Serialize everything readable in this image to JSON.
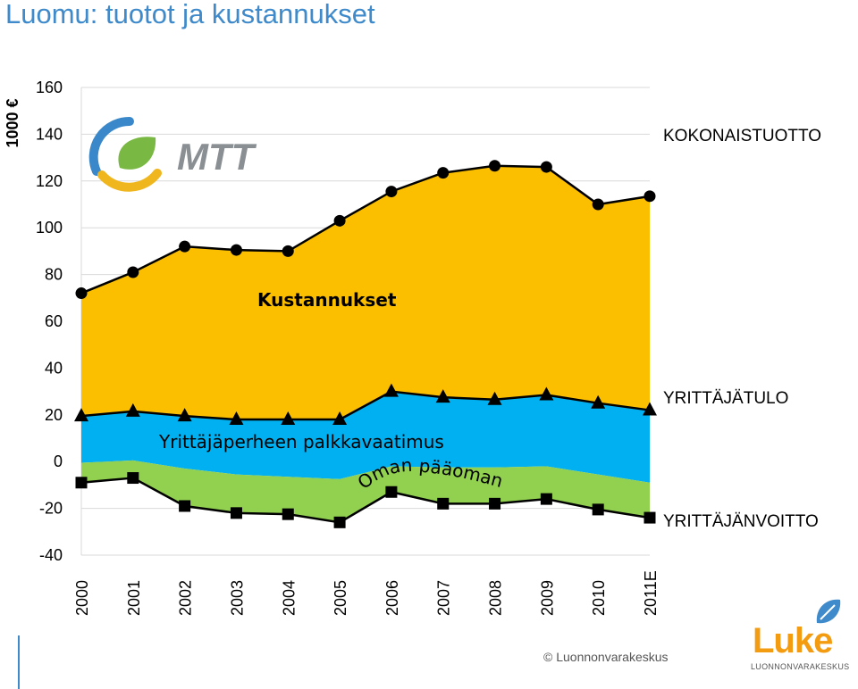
{
  "page": {
    "title": "Luomu: tuotot ja kustannukset",
    "copyright": "© Luonnonvarakeskus",
    "logos": {
      "mtt": {
        "text": "MTT",
        "colors": [
          "#3a88c9",
          "#79b943",
          "#f0b61d",
          "#8a8f93"
        ]
      },
      "luke": {
        "text": "Luke",
        "subtext": "LUONNONVARAKESKUS",
        "colors": [
          "#f39c12",
          "#3e8acb"
        ]
      }
    }
  },
  "colors": {
    "kustannukset": "#fbbf00",
    "palkkavaatimus": "#00b0f0",
    "korkovaatimus": "#92d050",
    "marker": "#000000",
    "gridline": "#d9d9d9",
    "title": "#3e8acb"
  },
  "chart_data": {
    "type": "area",
    "ylabel": "1000 €",
    "ylim": [
      -40,
      160
    ],
    "yticks": [
      -40,
      -20,
      0,
      20,
      40,
      60,
      80,
      100,
      120,
      140,
      160
    ],
    "categories": [
      "2000",
      "2001",
      "2002",
      "2003",
      "2004",
      "2005",
      "2006",
      "2007",
      "2008",
      "2009",
      "2010",
      "2011E"
    ],
    "areas": {
      "kustannukset_label": "Kustannukset",
      "palkkavaatimus_label": "Yrittäjäperheen palkkavaatimus",
      "korkovaatimus_label": "Oman pääoman korkovaatimus",
      "korkovaatimus_bounds": {
        "upper": [
          -0.5,
          0.5,
          -3,
          -5.5,
          -6.5,
          -7.5,
          -2,
          -2.5,
          -2.5,
          -2,
          -5.5,
          -9
        ],
        "lower": [
          -9,
          -7,
          -19,
          -22,
          -22.5,
          -26,
          -13,
          -18,
          -18,
          -16,
          -20.5,
          -24
        ]
      }
    },
    "series": [
      {
        "name": "KOKONAISTUOTTO",
        "marker": "circle",
        "values": [
          72,
          81,
          92,
          90.5,
          90,
          103,
          115.5,
          123.5,
          126.5,
          126,
          110,
          113.5
        ]
      },
      {
        "name": "YRITTÄJÄTULO",
        "marker": "triangle",
        "values": [
          19.5,
          21.5,
          19.5,
          18,
          18,
          18,
          30,
          27.5,
          26.5,
          28.5,
          25,
          22
        ]
      },
      {
        "name": "YRITTÄJÄNVOITTO",
        "marker": "square",
        "values": [
          -9,
          -7,
          -19,
          -22,
          -22.5,
          -26,
          -13,
          -18,
          -18,
          -16,
          -20.5,
          -24
        ]
      }
    ],
    "grid": true
  }
}
